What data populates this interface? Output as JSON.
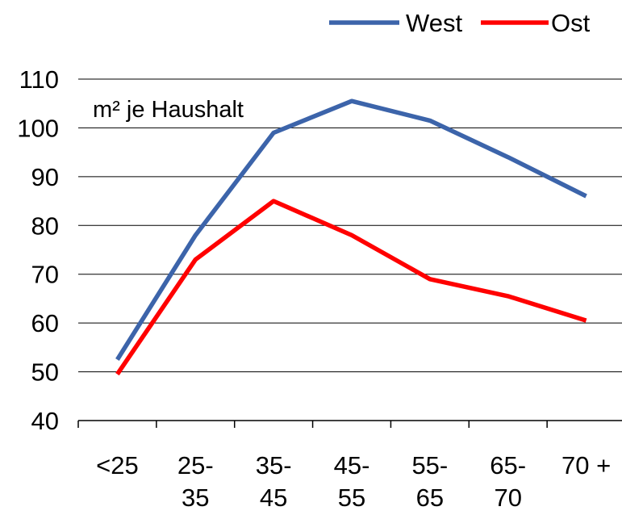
{
  "chart_data": {
    "type": "line",
    "categories": [
      "<25",
      "25-35",
      "35-45",
      "45-55",
      "55-65",
      "65-70",
      "70 +"
    ],
    "category_label_lines": [
      [
        "<25"
      ],
      [
        "25-",
        "35"
      ],
      [
        "35-",
        "45"
      ],
      [
        "45-",
        "55"
      ],
      [
        "55-",
        "65"
      ],
      [
        "65-",
        "70"
      ],
      [
        "70 +"
      ]
    ],
    "series": [
      {
        "name": "West",
        "color": "#3c64aa",
        "values": [
          52.5,
          78,
          99,
          105.5,
          101.5,
          94,
          86
        ]
      },
      {
        "name": "Ost",
        "color": "#ff0000",
        "values": [
          49.5,
          73,
          85,
          78,
          69,
          65.5,
          60.5
        ]
      }
    ],
    "ylim": [
      40,
      110
    ],
    "yticks": [
      40,
      50,
      60,
      70,
      80,
      90,
      100,
      110
    ],
    "annotation": "m² je Haushalt",
    "grid": "horizontal",
    "legend_position": "top-right"
  }
}
